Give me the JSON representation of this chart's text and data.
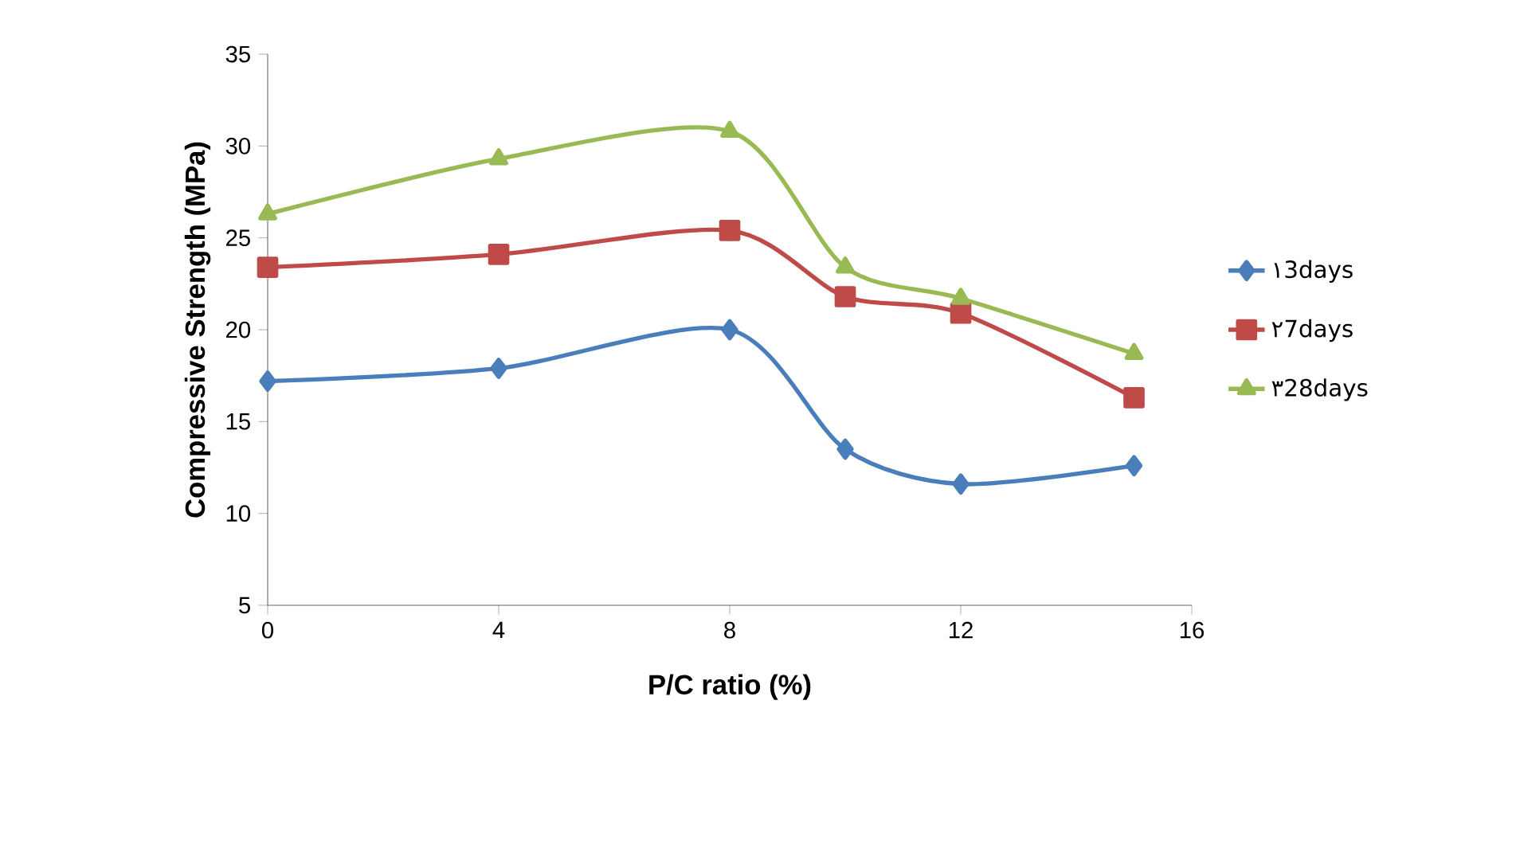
{
  "chart_data": {
    "type": "line",
    "xlabel": "P/C ratio (%)",
    "ylabel": "Compressive Strength (MPa)",
    "x": [
      0,
      4,
      8,
      10,
      12,
      15
    ],
    "series": [
      {
        "name": "١3days",
        "color": "#4a7ebb",
        "marker": "diamond",
        "values": [
          17.2,
          17.9,
          20.0,
          13.5,
          11.6,
          12.6
        ]
      },
      {
        "name": "٢7days",
        "color": "#be4b48",
        "marker": "square",
        "values": [
          23.4,
          24.1,
          25.4,
          21.8,
          20.9,
          16.3
        ]
      },
      {
        "name": "٣28days",
        "color": "#98b954",
        "marker": "triangle",
        "values": [
          26.3,
          29.3,
          30.8,
          23.4,
          21.7,
          18.7
        ]
      }
    ],
    "xlim": [
      0,
      16
    ],
    "xticks": [
      0,
      4,
      8,
      12,
      16
    ],
    "ylim": [
      5,
      35
    ],
    "yticks": [
      5,
      10,
      15,
      20,
      25,
      30,
      35
    ],
    "grid": false,
    "legend": "right",
    "line_style": "solid"
  }
}
